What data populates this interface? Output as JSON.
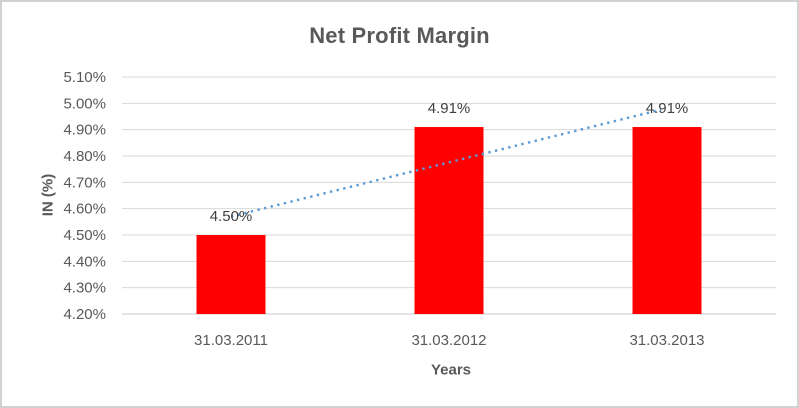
{
  "window": {
    "background_color": "#ffffff",
    "border_color": "#d2d2d2"
  },
  "chart_data": {
    "type": "bar",
    "title": "Net Profit Margin",
    "xlabel": "Years",
    "ylabel": "IN (%)",
    "categories": [
      "31.03.2011",
      "31.03.2012",
      "31.03.2013"
    ],
    "values": [
      4.5,
      4.91,
      4.91
    ],
    "data_labels": [
      "4.50%",
      "4.91%",
      "4.91%"
    ],
    "ylim": [
      4.2,
      5.1
    ],
    "ytick_step": 0.1,
    "ytick_labels": [
      "5.10%",
      "5.00%",
      "4.90%",
      "4.80%",
      "4.70%",
      "4.60%",
      "4.50%",
      "4.40%",
      "4.30%",
      "4.20%"
    ],
    "grid": true,
    "legend_position": "none",
    "bar_color": "#ff0000",
    "gridline_color": "#d9d9d9",
    "axis_line_color": "#c9c9c9",
    "axis_text_color": "#595959",
    "data_label_color": "#404040",
    "title_color": "#595959",
    "trendline": {
      "type": "linear",
      "style": "dotted",
      "color": "#5b9bd5",
      "start_value": 4.57,
      "end_value": 4.98
    }
  }
}
